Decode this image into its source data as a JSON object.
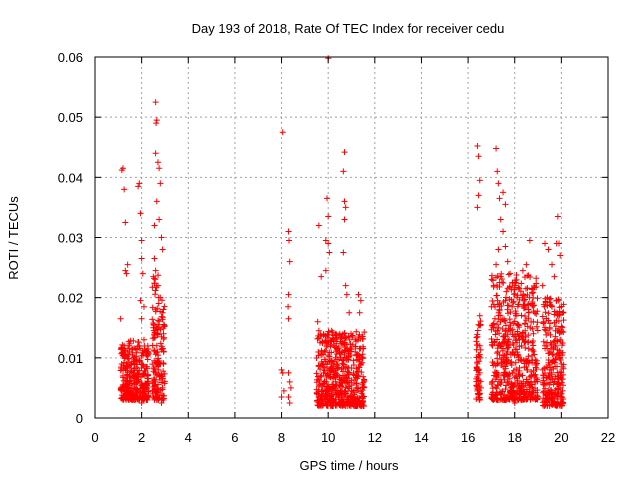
{
  "chart_data": {
    "type": "scatter",
    "title": "Day 193 of 2018, Rate Of TEC Index for receiver cedu",
    "xlabel": "GPS time / hours",
    "ylabel": "ROTI / TECUs",
    "xlim": [
      0,
      22
    ],
    "ylim": [
      0,
      0.06
    ],
    "xticks": [
      0,
      2,
      4,
      6,
      8,
      10,
      12,
      14,
      16,
      18,
      20,
      22
    ],
    "yticks": [
      0,
      0.01,
      0.02,
      0.03,
      0.04,
      0.05,
      0.06
    ],
    "xtick_labels": [
      "0",
      "2",
      "4",
      "6",
      "8",
      "10",
      "12",
      "14",
      "16",
      "18",
      "20",
      "22"
    ],
    "ytick_labels": [
      "0",
      "0.01",
      "0.02",
      "0.03",
      "0.04",
      "0.05",
      "0.06"
    ],
    "grid": true,
    "marker": "+",
    "colors": {
      "points": "#ff0000",
      "axes": "#000000",
      "grid": "#a0a0a0"
    },
    "series": [
      {
        "name": "ROTI",
        "points": [
          [
            1.1,
            0.0165
          ],
          [
            1.15,
            0.0412
          ],
          [
            1.2,
            0.0415
          ],
          [
            1.25,
            0.038
          ],
          [
            1.3,
            0.0325
          ],
          [
            1.3,
            0.0245
          ],
          [
            1.35,
            0.024
          ],
          [
            1.4,
            0.0255
          ],
          [
            1.25,
            0.012
          ],
          [
            1.3,
            0.011
          ],
          [
            1.35,
            0.0085
          ],
          [
            1.4,
            0.007
          ],
          [
            1.2,
            0.0055
          ],
          [
            1.45,
            0.005
          ],
          [
            1.5,
            0.0045
          ],
          [
            1.55,
            0.004
          ],
          [
            1.6,
            0.0035
          ],
          [
            1.7,
            0.003
          ],
          [
            1.75,
            0.006
          ],
          [
            1.8,
            0.0095
          ],
          [
            1.85,
            0.0385
          ],
          [
            1.9,
            0.039
          ],
          [
            1.95,
            0.034
          ],
          [
            2.0,
            0.0295
          ],
          [
            2.0,
            0.0265
          ],
          [
            2.05,
            0.024
          ],
          [
            2.1,
            0.0185
          ],
          [
            2.1,
            0.013
          ],
          [
            2.15,
            0.011
          ],
          [
            1.9,
            0.012
          ],
          [
            2.0,
            0.0165
          ],
          [
            1.95,
            0.0195
          ],
          [
            2.2,
            0.0085
          ],
          [
            2.25,
            0.006
          ],
          [
            2.15,
            0.0035
          ],
          [
            2.0,
            0.0025
          ],
          [
            1.85,
            0.0045
          ],
          [
            1.65,
            0.0075
          ],
          [
            1.55,
            0.009
          ],
          [
            1.45,
            0.0105
          ],
          [
            2.6,
            0.0525
          ],
          [
            2.62,
            0.049
          ],
          [
            2.65,
            0.0495
          ],
          [
            2.6,
            0.044
          ],
          [
            2.7,
            0.0425
          ],
          [
            2.75,
            0.0415
          ],
          [
            2.65,
            0.036
          ],
          [
            2.8,
            0.039
          ],
          [
            2.75,
            0.033
          ],
          [
            2.55,
            0.032
          ],
          [
            2.85,
            0.03
          ],
          [
            2.9,
            0.028
          ],
          [
            2.55,
            0.0265
          ],
          [
            2.6,
            0.0245
          ],
          [
            2.7,
            0.022
          ],
          [
            2.8,
            0.02
          ],
          [
            2.6,
            0.018
          ],
          [
            2.9,
            0.0175
          ],
          [
            2.7,
            0.0155
          ],
          [
            2.5,
            0.015
          ],
          [
            2.85,
            0.0135
          ],
          [
            2.65,
            0.012
          ],
          [
            2.95,
            0.011
          ],
          [
            2.75,
            0.0095
          ],
          [
            2.55,
            0.008
          ],
          [
            2.8,
            0.007
          ],
          [
            2.6,
            0.006
          ],
          [
            2.9,
            0.005
          ],
          [
            2.7,
            0.004
          ],
          [
            2.5,
            0.0035
          ],
          [
            2.85,
            0.0025
          ],
          [
            2.65,
            0.003
          ],
          [
            8.05,
            0.0475
          ],
          [
            8.3,
            0.031
          ],
          [
            8.32,
            0.0295
          ],
          [
            8.35,
            0.026
          ],
          [
            8.3,
            0.0205
          ],
          [
            8.28,
            0.0185
          ],
          [
            8.3,
            0.0165
          ],
          [
            8.0,
            0.008
          ],
          [
            8.05,
            0.0075
          ],
          [
            8.1,
            0.0045
          ],
          [
            8.0,
            0.0035
          ],
          [
            8.3,
            0.0075
          ],
          [
            8.35,
            0.006
          ],
          [
            8.4,
            0.005
          ],
          [
            8.3,
            0.0035
          ],
          [
            8.35,
            0.0025
          ],
          [
            10.0,
            0.0598
          ],
          [
            9.95,
            0.0365
          ],
          [
            10.0,
            0.0335
          ],
          [
            9.9,
            0.0295
          ],
          [
            10.0,
            0.029
          ],
          [
            10.05,
            0.0275
          ],
          [
            9.9,
            0.0245
          ],
          [
            9.7,
            0.0235
          ],
          [
            9.6,
            0.032
          ],
          [
            10.7,
            0.0442
          ],
          [
            10.65,
            0.041
          ],
          [
            10.7,
            0.036
          ],
          [
            10.75,
            0.035
          ],
          [
            10.7,
            0.033
          ],
          [
            10.65,
            0.0275
          ],
          [
            10.75,
            0.022
          ],
          [
            10.8,
            0.0205
          ],
          [
            10.9,
            0.0175
          ],
          [
            11.3,
            0.0205
          ],
          [
            11.4,
            0.0195
          ],
          [
            11.35,
            0.0175
          ],
          [
            9.55,
            0.016
          ],
          [
            9.6,
            0.0145
          ],
          [
            9.65,
            0.0125
          ],
          [
            9.7,
            0.0105
          ],
          [
            9.75,
            0.009
          ],
          [
            9.8,
            0.0075
          ],
          [
            9.85,
            0.006
          ],
          [
            9.9,
            0.0045
          ],
          [
            9.95,
            0.0035
          ],
          [
            10.05,
            0.0025
          ],
          [
            10.1,
            0.003
          ],
          [
            10.2,
            0.005
          ],
          [
            10.3,
            0.007
          ],
          [
            10.35,
            0.009
          ],
          [
            10.4,
            0.0115
          ],
          [
            10.5,
            0.014
          ],
          [
            10.6,
            0.0125
          ],
          [
            10.7,
            0.0105
          ],
          [
            10.8,
            0.0085
          ],
          [
            10.9,
            0.006
          ],
          [
            11.0,
            0.0045
          ],
          [
            11.1,
            0.0035
          ],
          [
            11.2,
            0.005
          ],
          [
            11.3,
            0.007
          ],
          [
            11.4,
            0.009
          ],
          [
            11.5,
            0.0115
          ],
          [
            11.45,
            0.0135
          ],
          [
            10.15,
            0.0145
          ],
          [
            10.25,
            0.012
          ],
          [
            9.6,
            0.0035
          ],
          [
            9.65,
            0.0055
          ],
          [
            10.45,
            0.0025
          ],
          [
            10.55,
            0.0045
          ],
          [
            11.05,
            0.0025
          ],
          [
            11.25,
            0.0105
          ],
          [
            16.4,
            0.0452
          ],
          [
            16.45,
            0.0435
          ],
          [
            16.5,
            0.0395
          ],
          [
            16.45,
            0.037
          ],
          [
            16.4,
            0.035
          ],
          [
            16.5,
            0.017
          ],
          [
            16.45,
            0.0155
          ],
          [
            16.4,
            0.0135
          ],
          [
            16.5,
            0.012
          ],
          [
            16.45,
            0.0105
          ],
          [
            16.4,
            0.009
          ],
          [
            16.5,
            0.0075
          ],
          [
            16.45,
            0.006
          ],
          [
            16.4,
            0.0045
          ],
          [
            16.5,
            0.003
          ],
          [
            16.55,
            0.005
          ],
          [
            17.2,
            0.0448
          ],
          [
            17.25,
            0.041
          ],
          [
            17.3,
            0.039
          ],
          [
            17.35,
            0.0365
          ],
          [
            17.5,
            0.0375
          ],
          [
            17.6,
            0.0355
          ],
          [
            17.4,
            0.033
          ],
          [
            17.5,
            0.031
          ],
          [
            17.3,
            0.028
          ],
          [
            17.6,
            0.0285
          ],
          [
            17.2,
            0.0255
          ],
          [
            17.7,
            0.026
          ],
          [
            17.4,
            0.0235
          ],
          [
            17.8,
            0.024
          ],
          [
            17.1,
            0.022
          ],
          [
            17.9,
            0.0225
          ],
          [
            18.1,
            0.02
          ],
          [
            18.2,
            0.0215
          ],
          [
            18.35,
            0.0245
          ],
          [
            18.5,
            0.0255
          ],
          [
            18.65,
            0.0295
          ],
          [
            18.4,
            0.0185
          ],
          [
            18.6,
            0.0175
          ],
          [
            18.8,
            0.016
          ],
          [
            17.0,
            0.0185
          ],
          [
            17.15,
            0.0165
          ],
          [
            17.3,
            0.015
          ],
          [
            17.5,
            0.0135
          ],
          [
            17.7,
            0.012
          ],
          [
            17.9,
            0.011
          ],
          [
            18.1,
            0.0125
          ],
          [
            18.3,
            0.0095
          ],
          [
            18.5,
            0.0085
          ],
          [
            18.7,
            0.007
          ],
          [
            18.9,
            0.006
          ],
          [
            18.2,
            0.005
          ],
          [
            17.8,
            0.0045
          ],
          [
            17.4,
            0.004
          ],
          [
            17.0,
            0.0035
          ],
          [
            17.6,
            0.003
          ],
          [
            18.0,
            0.0025
          ],
          [
            18.4,
            0.0035
          ],
          [
            18.8,
            0.0045
          ],
          [
            17.2,
            0.007
          ],
          [
            17.5,
            0.0085
          ],
          [
            17.9,
            0.0075
          ],
          [
            18.3,
            0.0135
          ],
          [
            18.6,
            0.0115
          ],
          [
            17.05,
            0.012
          ],
          [
            17.35,
            0.0105
          ],
          [
            17.75,
            0.0145
          ],
          [
            18.15,
            0.0155
          ],
          [
            18.45,
            0.0145
          ],
          [
            18.75,
            0.0125
          ],
          [
            18.95,
            0.0095
          ],
          [
            17.6,
            0.0195
          ],
          [
            19.3,
            0.029
          ],
          [
            19.45,
            0.028
          ],
          [
            19.6,
            0.0255
          ],
          [
            19.8,
            0.029
          ],
          [
            19.85,
            0.0335
          ],
          [
            19.9,
            0.029
          ],
          [
            19.95,
            0.027
          ],
          [
            19.7,
            0.0235
          ],
          [
            19.2,
            0.022
          ],
          [
            19.4,
            0.02
          ],
          [
            19.6,
            0.0185
          ],
          [
            19.8,
            0.0195
          ],
          [
            19.9,
            0.017
          ],
          [
            19.25,
            0.016
          ],
          [
            19.5,
            0.015
          ],
          [
            19.75,
            0.0145
          ],
          [
            19.95,
            0.013
          ],
          [
            19.3,
            0.012
          ],
          [
            19.55,
            0.011
          ],
          [
            19.8,
            0.0105
          ],
          [
            20.0,
            0.009
          ],
          [
            19.2,
            0.008
          ],
          [
            19.45,
            0.007
          ],
          [
            19.7,
            0.006
          ],
          [
            19.95,
            0.005
          ],
          [
            19.35,
            0.004
          ],
          [
            19.6,
            0.0035
          ],
          [
            19.85,
            0.0025
          ],
          [
            20.05,
            0.0045
          ],
          [
            19.25,
            0.0055
          ],
          [
            19.5,
            0.0075
          ],
          [
            20.0,
            0.0065
          ]
        ]
      }
    ],
    "dense_clusters": [
      {
        "x": [
          1.1,
          2.3
        ],
        "y": [
          0.003,
          0.013
        ]
      },
      {
        "x": [
          2.45,
          3.0
        ],
        "y": [
          0.003,
          0.024
        ]
      },
      {
        "x": [
          9.5,
          11.55
        ],
        "y": [
          0.002,
          0.0145
        ]
      },
      {
        "x": [
          16.35,
          16.55
        ],
        "y": [
          0.003,
          0.017
        ]
      },
      {
        "x": [
          17.0,
          19.0
        ],
        "y": [
          0.003,
          0.024
        ]
      },
      {
        "x": [
          19.2,
          20.1
        ],
        "y": [
          0.002,
          0.02
        ]
      }
    ]
  }
}
